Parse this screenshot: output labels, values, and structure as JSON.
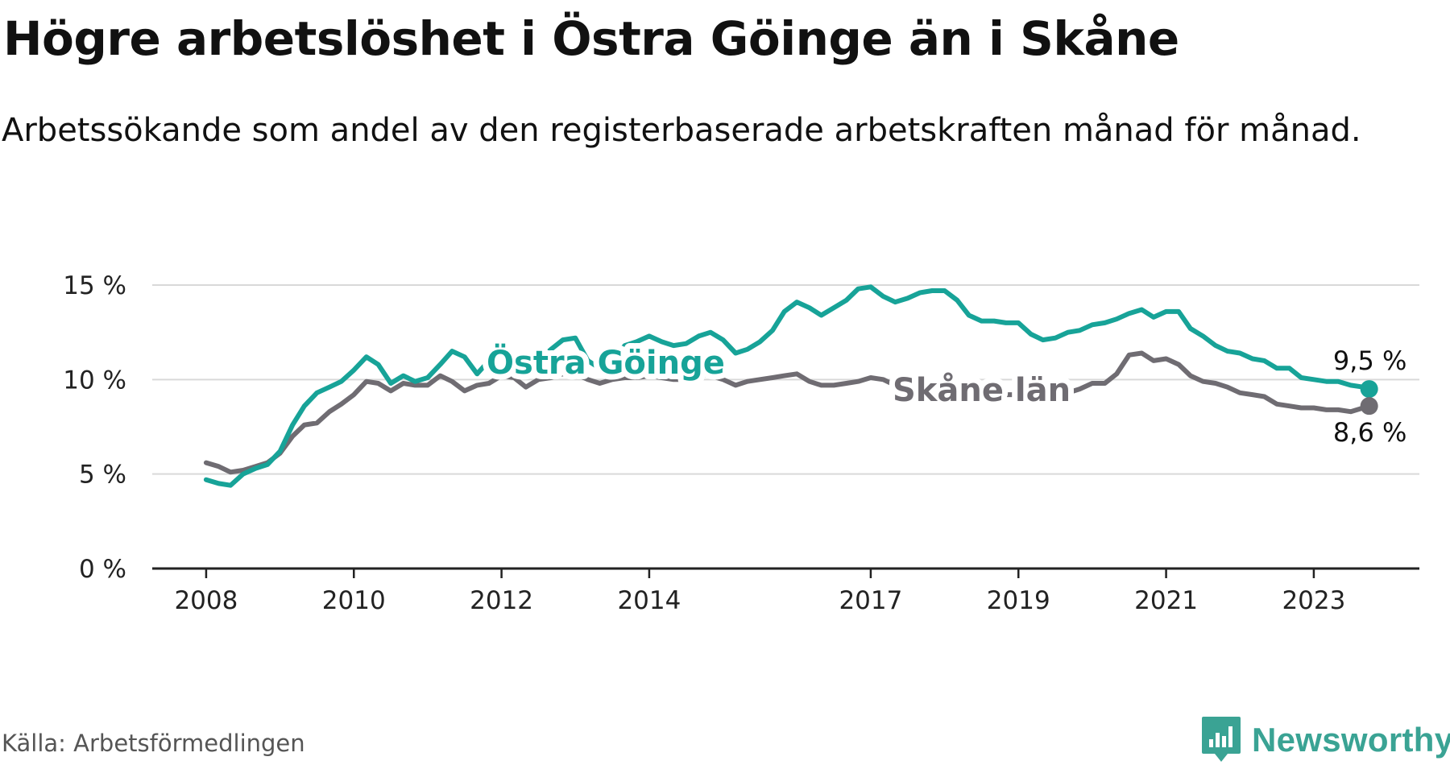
{
  "title": "Högre arbetslöshet i Östra Göinge än i Skåne",
  "subtitle": "Arbetssökande som andel av den registerbaserade arbetskraften månad för månad.",
  "source": "Källa: Arbetsförmedlingen",
  "logo": {
    "text": "Newsworthy",
    "icon": "newsworthy-logo-icon"
  },
  "colors": {
    "goinge": "#17a398",
    "skane": "#6f6c72",
    "grid": "#d9d9d9",
    "axis": "#222222"
  },
  "chart_data": {
    "type": "line",
    "title": "Högre arbetslöshet i Östra Göinge än i Skåne",
    "xlabel": "",
    "ylabel": "",
    "ylim": [
      0,
      15
    ],
    "yticks": [
      {
        "value": 0,
        "label": "0 %"
      },
      {
        "value": 5,
        "label": "5 %"
      },
      {
        "value": 10,
        "label": "10 %"
      },
      {
        "value": 15,
        "label": "15 %"
      }
    ],
    "xticks": [
      {
        "value": 2008.0,
        "label": "2008"
      },
      {
        "value": 2010.0,
        "label": "2010"
      },
      {
        "value": 2012.0,
        "label": "2012"
      },
      {
        "value": 2014.0,
        "label": "2014"
      },
      {
        "value": 2017.0,
        "label": "2017"
      },
      {
        "value": 2019.0,
        "label": "2019"
      },
      {
        "value": 2021.0,
        "label": "2021"
      },
      {
        "value": 2023.0,
        "label": "2023"
      }
    ],
    "grid": true,
    "legend": "inline labels",
    "series": [
      {
        "name": "Östra Göinge",
        "label": "Östra Göinge",
        "color": "#17a398",
        "end_label": "9,5 %",
        "points": [
          [
            2008.0,
            4.7
          ],
          [
            2008.17,
            4.5
          ],
          [
            2008.33,
            4.4
          ],
          [
            2008.5,
            5.0
          ],
          [
            2008.67,
            5.3
          ],
          [
            2008.83,
            5.5
          ],
          [
            2009.0,
            6.2
          ],
          [
            2009.17,
            7.6
          ],
          [
            2009.33,
            8.6
          ],
          [
            2009.5,
            9.3
          ],
          [
            2009.67,
            9.6
          ],
          [
            2009.83,
            9.9
          ],
          [
            2010.0,
            10.5
          ],
          [
            2010.17,
            11.2
          ],
          [
            2010.33,
            10.8
          ],
          [
            2010.5,
            9.8
          ],
          [
            2010.67,
            10.2
          ],
          [
            2010.83,
            9.9
          ],
          [
            2011.0,
            10.1
          ],
          [
            2011.17,
            10.8
          ],
          [
            2011.33,
            11.5
          ],
          [
            2011.5,
            11.2
          ],
          [
            2011.67,
            10.3
          ],
          [
            2011.83,
            11.0
          ],
          [
            2012.0,
            11.5
          ],
          [
            2012.17,
            11.3
          ],
          [
            2012.33,
            10.6
          ],
          [
            2012.5,
            11.0
          ],
          [
            2012.67,
            11.6
          ],
          [
            2012.83,
            12.1
          ],
          [
            2013.0,
            12.2
          ],
          [
            2013.17,
            11.0
          ],
          [
            2013.33,
            10.6
          ],
          [
            2013.5,
            11.0
          ],
          [
            2013.67,
            11.8
          ],
          [
            2013.83,
            12.0
          ],
          [
            2014.0,
            12.3
          ],
          [
            2014.17,
            12.0
          ],
          [
            2014.33,
            11.8
          ],
          [
            2014.5,
            11.9
          ],
          [
            2014.67,
            12.3
          ],
          [
            2014.83,
            12.5
          ],
          [
            2015.0,
            12.1
          ],
          [
            2015.17,
            11.4
          ],
          [
            2015.33,
            11.6
          ],
          [
            2015.5,
            12.0
          ],
          [
            2015.67,
            12.6
          ],
          [
            2015.83,
            13.6
          ],
          [
            2016.0,
            14.1
          ],
          [
            2016.17,
            13.8
          ],
          [
            2016.33,
            13.4
          ],
          [
            2016.5,
            13.8
          ],
          [
            2016.67,
            14.2
          ],
          [
            2016.83,
            14.8
          ],
          [
            2017.0,
            14.9
          ],
          [
            2017.17,
            14.4
          ],
          [
            2017.33,
            14.1
          ],
          [
            2017.5,
            14.3
          ],
          [
            2017.67,
            14.6
          ],
          [
            2017.83,
            14.7
          ],
          [
            2018.0,
            14.7
          ],
          [
            2018.17,
            14.2
          ],
          [
            2018.33,
            13.4
          ],
          [
            2018.5,
            13.1
          ],
          [
            2018.67,
            13.1
          ],
          [
            2018.83,
            13.0
          ],
          [
            2019.0,
            13.0
          ],
          [
            2019.17,
            12.4
          ],
          [
            2019.33,
            12.1
          ],
          [
            2019.5,
            12.2
          ],
          [
            2019.67,
            12.5
          ],
          [
            2019.83,
            12.6
          ],
          [
            2020.0,
            12.9
          ],
          [
            2020.17,
            13.0
          ],
          [
            2020.33,
            13.2
          ],
          [
            2020.5,
            13.5
          ],
          [
            2020.67,
            13.7
          ],
          [
            2020.83,
            13.3
          ],
          [
            2021.0,
            13.6
          ],
          [
            2021.17,
            13.6
          ],
          [
            2021.33,
            12.7
          ],
          [
            2021.5,
            12.3
          ],
          [
            2021.67,
            11.8
          ],
          [
            2021.83,
            11.5
          ],
          [
            2022.0,
            11.4
          ],
          [
            2022.17,
            11.1
          ],
          [
            2022.33,
            11.0
          ],
          [
            2022.5,
            10.6
          ],
          [
            2022.67,
            10.6
          ],
          [
            2022.83,
            10.1
          ],
          [
            2023.0,
            10.0
          ],
          [
            2023.17,
            9.9
          ],
          [
            2023.33,
            9.9
          ],
          [
            2023.5,
            9.7
          ],
          [
            2023.67,
            9.6
          ],
          [
            2023.75,
            9.5
          ]
        ]
      },
      {
        "name": "Skåne län",
        "label": "Skåne län",
        "color": "#6f6c72",
        "end_label": "8,6 %",
        "points": [
          [
            2008.0,
            5.6
          ],
          [
            2008.17,
            5.4
          ],
          [
            2008.33,
            5.1
          ],
          [
            2008.5,
            5.2
          ],
          [
            2008.67,
            5.4
          ],
          [
            2008.83,
            5.6
          ],
          [
            2009.0,
            6.1
          ],
          [
            2009.17,
            7.0
          ],
          [
            2009.33,
            7.6
          ],
          [
            2009.5,
            7.7
          ],
          [
            2009.67,
            8.3
          ],
          [
            2009.83,
            8.7
          ],
          [
            2010.0,
            9.2
          ],
          [
            2010.17,
            9.9
          ],
          [
            2010.33,
            9.8
          ],
          [
            2010.5,
            9.4
          ],
          [
            2010.67,
            9.8
          ],
          [
            2010.83,
            9.7
          ],
          [
            2011.0,
            9.7
          ],
          [
            2011.17,
            10.2
          ],
          [
            2011.33,
            9.9
          ],
          [
            2011.5,
            9.4
          ],
          [
            2011.67,
            9.7
          ],
          [
            2011.83,
            9.8
          ],
          [
            2012.0,
            10.2
          ],
          [
            2012.17,
            10.1
          ],
          [
            2012.33,
            9.6
          ],
          [
            2012.5,
            10.0
          ],
          [
            2012.67,
            10.1
          ],
          [
            2012.83,
            10.3
          ],
          [
            2013.0,
            10.3
          ],
          [
            2013.17,
            10.0
          ],
          [
            2013.33,
            9.8
          ],
          [
            2013.5,
            10.0
          ],
          [
            2013.67,
            10.1
          ],
          [
            2013.83,
            10.1
          ],
          [
            2014.0,
            10.2
          ],
          [
            2014.17,
            10.1
          ],
          [
            2014.33,
            10.0
          ],
          [
            2014.5,
            10.0
          ],
          [
            2014.67,
            10.3
          ],
          [
            2014.83,
            10.2
          ],
          [
            2015.0,
            10.0
          ],
          [
            2015.17,
            9.7
          ],
          [
            2015.33,
            9.9
          ],
          [
            2015.5,
            10.0
          ],
          [
            2015.67,
            10.1
          ],
          [
            2015.83,
            10.2
          ],
          [
            2016.0,
            10.3
          ],
          [
            2016.17,
            9.9
          ],
          [
            2016.33,
            9.7
          ],
          [
            2016.5,
            9.7
          ],
          [
            2016.67,
            9.8
          ],
          [
            2016.83,
            9.9
          ],
          [
            2017.0,
            10.1
          ],
          [
            2017.17,
            10.0
          ],
          [
            2017.33,
            9.7
          ],
          [
            2017.5,
            9.6
          ],
          [
            2017.67,
            9.6
          ],
          [
            2017.83,
            9.7
          ],
          [
            2018.0,
            9.6
          ],
          [
            2018.17,
            9.5
          ],
          [
            2018.33,
            9.4
          ],
          [
            2018.5,
            9.3
          ],
          [
            2018.67,
            9.3
          ],
          [
            2018.83,
            9.2
          ],
          [
            2019.0,
            9.2
          ],
          [
            2019.17,
            9.1
          ],
          [
            2019.33,
            9.0
          ],
          [
            2019.5,
            9.1
          ],
          [
            2019.67,
            9.3
          ],
          [
            2019.83,
            9.5
          ],
          [
            2020.0,
            9.8
          ],
          [
            2020.17,
            9.8
          ],
          [
            2020.33,
            10.3
          ],
          [
            2020.5,
            11.3
          ],
          [
            2020.67,
            11.4
          ],
          [
            2020.83,
            11.0
          ],
          [
            2021.0,
            11.1
          ],
          [
            2021.17,
            10.8
          ],
          [
            2021.33,
            10.2
          ],
          [
            2021.5,
            9.9
          ],
          [
            2021.67,
            9.8
          ],
          [
            2021.83,
            9.6
          ],
          [
            2022.0,
            9.3
          ],
          [
            2022.17,
            9.2
          ],
          [
            2022.33,
            9.1
          ],
          [
            2022.5,
            8.7
          ],
          [
            2022.67,
            8.6
          ],
          [
            2022.83,
            8.5
          ],
          [
            2023.0,
            8.5
          ],
          [
            2023.17,
            8.4
          ],
          [
            2023.33,
            8.4
          ],
          [
            2023.5,
            8.3
          ],
          [
            2023.67,
            8.5
          ],
          [
            2023.75,
            8.6
          ]
        ]
      }
    ]
  }
}
